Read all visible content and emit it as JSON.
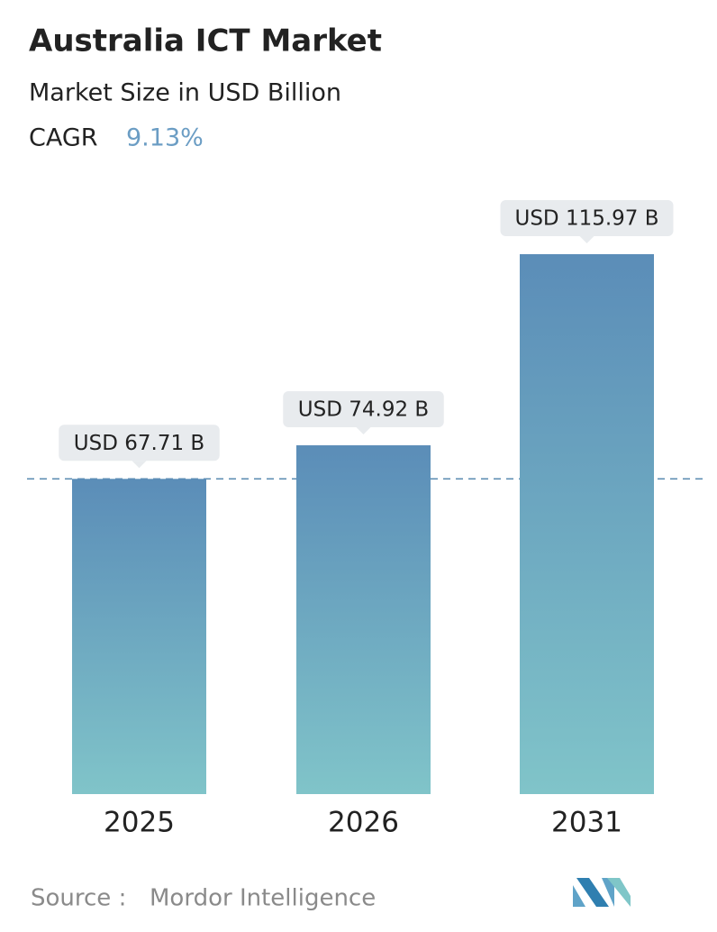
{
  "chart_data": {
    "type": "bar",
    "title": "Australia ICT Market",
    "subtitle": "Market Size in USD Billion",
    "cagr_label": "CAGR",
    "cagr": "9.13%",
    "categories": [
      "2025",
      "2026",
      "2031"
    ],
    "values": [
      67.71,
      74.92,
      115.97
    ],
    "value_labels": [
      "USD 67.71 B",
      "USD 74.92 B",
      "USD 115.97 B"
    ],
    "color": [
      "#5b8db8",
      "#80c4c9"
    ],
    "source_label": "Source :",
    "source": "Mordor Intelligence"
  }
}
